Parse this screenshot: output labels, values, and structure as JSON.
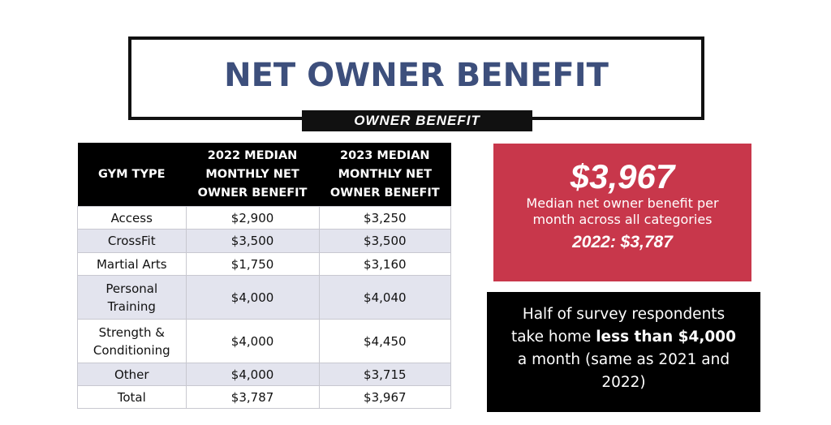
{
  "header": {
    "title": "NET OWNER BENEFIT",
    "subtitle": "OWNER BENEFIT"
  },
  "table": {
    "columns": [
      "GYM TYPE",
      "2022 MEDIAN MONTHLY NET OWNER BENEFIT",
      "2023 MEDIAN MONTHLY NET OWNER BENEFIT"
    ],
    "rows": [
      [
        "Access",
        "$2,900",
        "$3,250"
      ],
      [
        "CrossFit",
        "$3,500",
        "$3,500"
      ],
      [
        "Martial Arts",
        "$1,750",
        "$3,160"
      ],
      [
        "Personal Training",
        "$4,000",
        "$4,040"
      ],
      [
        "Strength & Conditioning",
        "$4,000",
        "$4,450"
      ],
      [
        "Other",
        "$4,000",
        "$3,715"
      ],
      [
        "Total",
        "$3,787",
        "$3,967"
      ]
    ]
  },
  "highlight": {
    "value": "$3,967",
    "caption": "Median net owner benefit per month across all categories",
    "comparison": "2022: $3,787"
  },
  "note": {
    "before": "Half of survey respondents take home ",
    "bold": "less than $4,000",
    "after": " a month (same as 2021 and 2022)"
  }
}
